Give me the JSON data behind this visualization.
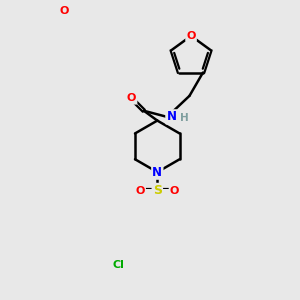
{
  "background_color": "#e8e8e8",
  "atom_colors": {
    "O": "#ff0000",
    "N": "#0000ff",
    "S": "#cccc00",
    "Cl": "#00aa00",
    "H": "#7f9f9f",
    "C": "#000000"
  }
}
